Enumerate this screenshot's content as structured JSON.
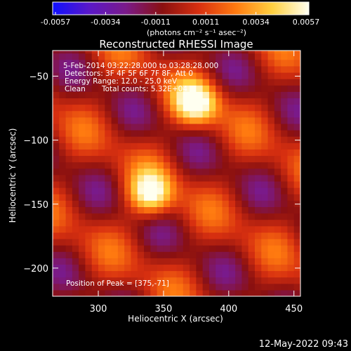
{
  "colorbar": {
    "ticks": [
      "-0.0057",
      "-0.0034",
      "-0.0011",
      "0.0011",
      "0.0034",
      "0.0057"
    ],
    "units_label": "(photons cm⁻² s⁻¹ asec⁻²)",
    "colors": [
      "#1010ff",
      "#5a18c8",
      "#7a1a8a",
      "#8a1010",
      "#d83010",
      "#ff7a10",
      "#ffd040",
      "#fffff0"
    ]
  },
  "chart_data": {
    "type": "heatmap",
    "title": "Reconstructed RHESSI Image",
    "xlabel": "Heliocentric X (arcsec)",
    "ylabel": "Heliocentric Y (arcsec)",
    "xlim": [
      265,
      455
    ],
    "ylim": [
      -222,
      -30
    ],
    "x_ticks": [
      300,
      350,
      400,
      450
    ],
    "y_ticks": [
      -50,
      -100,
      -150,
      -200
    ],
    "vmin": -0.0057,
    "vmax": 0.0057,
    "sources": [
      {
        "x": 375,
        "y": -71,
        "peak": 0.0057,
        "label": "Position of Peak = [375,-71]"
      },
      {
        "x": 340,
        "y": -142,
        "peak": 0.0055
      }
    ],
    "annotations": {
      "time_range": "5-Feb-2014 03:22:28.000 to 03:28:28.000",
      "detectors": "Detectors: 3F 4F 5F 6F 7F 8F, Att 0",
      "energy": "Energy Range: 12.0 - 25.0 keV",
      "clean": "Clean",
      "total_counts": "Total counts: 5.32E+04",
      "peak_position": "Position of Peak = [375,-71]"
    }
  },
  "footer": {
    "date": "12-May-2022 09:43"
  }
}
